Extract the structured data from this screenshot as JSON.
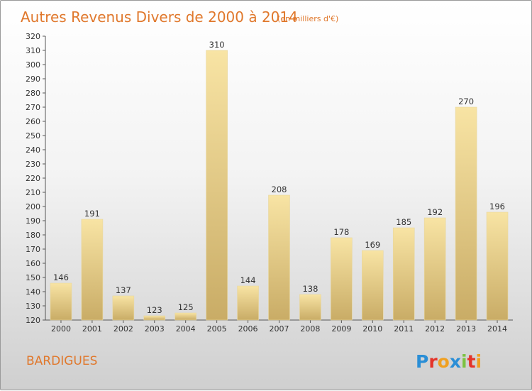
{
  "chart_data": {
    "type": "bar",
    "title": "Autres Revenus Divers de 2000 à 2014",
    "subtitle": "(en milliers d'€)",
    "categories": [
      "2000",
      "2001",
      "2002",
      "2003",
      "2004",
      "2005",
      "2006",
      "2007",
      "2008",
      "2009",
      "2010",
      "2011",
      "2012",
      "2013",
      "2014"
    ],
    "values": [
      146,
      191,
      137,
      123,
      125,
      310,
      144,
      208,
      138,
      178,
      169,
      185,
      192,
      270,
      196
    ],
    "ylim": [
      120,
      320
    ],
    "ytick_step": 10,
    "grid": false,
    "colors": {
      "bar_light": "#f8e4a4",
      "bar_dark": "#c9ac66",
      "title": "#e0782c"
    }
  },
  "place": "BARDIGUES",
  "logo": {
    "text": "Proxiti",
    "letters": [
      {
        "ch": "P",
        "color": "#2a8ed6"
      },
      {
        "ch": "r",
        "color": "#e4342a"
      },
      {
        "ch": "o",
        "color": "#f0a020"
      },
      {
        "ch": "x",
        "color": "#2a8ed6"
      },
      {
        "ch": "i",
        "color": "#7cc242"
      },
      {
        "ch": "t",
        "color": "#e4342a"
      },
      {
        "ch": "i",
        "color": "#f0a020"
      }
    ]
  }
}
